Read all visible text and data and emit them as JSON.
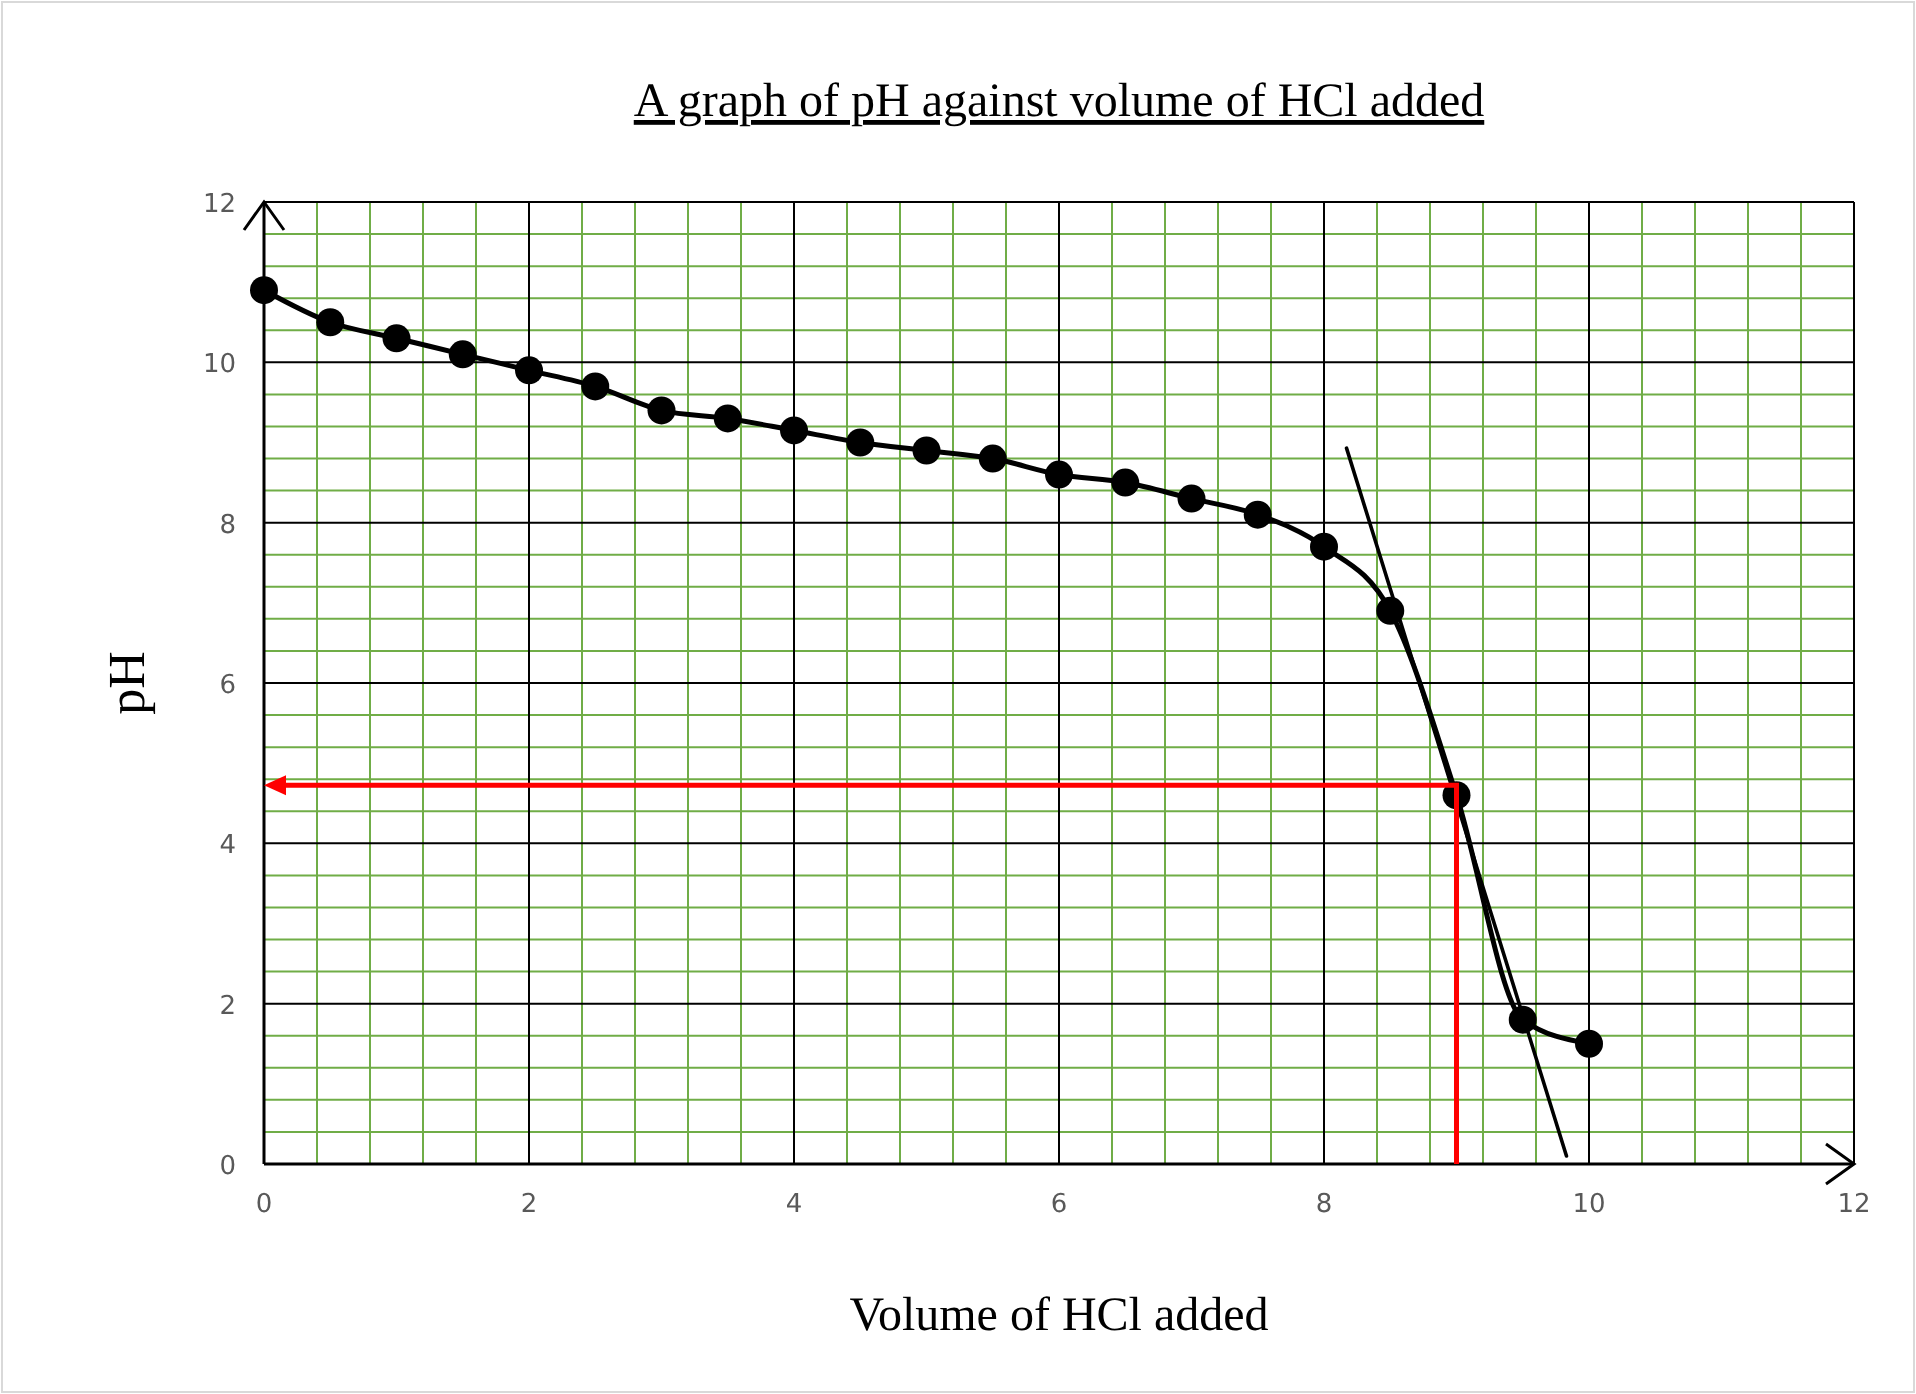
{
  "chart_data": {
    "type": "line",
    "title": "A graph of pH against volume of HCl added",
    "xlabel": "Volume of HCl added",
    "ylabel": "pH",
    "xlim": [
      0,
      12
    ],
    "ylim": [
      0,
      12
    ],
    "xticks": [
      0,
      {
        "value": 0.4,
        "label": null
      },
      {
        "value": 0.8,
        "label": null
      },
      {
        "value": 1.2,
        "label": null
      },
      {
        "value": 1.6,
        "label": null
      },
      2,
      {
        "value": 2.4,
        "label": null
      },
      {
        "value": 2.8,
        "label": null
      },
      {
        "value": 3.2,
        "label": null
      },
      {
        "value": 3.6,
        "label": null
      },
      4,
      {
        "value": 4.4,
        "label": null
      },
      {
        "value": 4.8,
        "label": null
      },
      {
        "value": 5.2,
        "label": null
      },
      {
        "value": 5.6,
        "label": null
      },
      6,
      {
        "value": 6.4,
        "label": null
      },
      {
        "value": 6.8,
        "label": null
      },
      {
        "value": 7.2,
        "label": null
      },
      {
        "value": 7.6,
        "label": null
      },
      8,
      {
        "value": 8.4,
        "label": null
      },
      {
        "value": 8.8,
        "label": null
      },
      {
        "value": 9.2,
        "label": null
      },
      {
        "value": 9.6,
        "label": null
      },
      10,
      {
        "value": 10.4,
        "label": null
      },
      {
        "value": 10.8,
        "label": null
      },
      {
        "value": 11.2,
        "label": null
      },
      {
        "value": 11.6,
        "label": null
      },
      12
    ],
    "yticks": [
      0,
      {
        "value": 0.4,
        "label": null
      },
      {
        "value": 0.8,
        "label": null
      },
      {
        "value": 1.2,
        "label": null
      },
      {
        "value": 1.6,
        "label": null
      },
      2,
      {
        "value": 2.4,
        "label": null
      },
      {
        "value": 2.8,
        "label": null
      },
      {
        "value": 3.2,
        "label": null
      },
      {
        "value": 3.6,
        "label": null
      },
      4,
      {
        "value": 4.4,
        "label": null
      },
      {
        "value": 4.8,
        "label": null
      },
      {
        "value": 5.2,
        "label": null
      },
      {
        "value": 5.6,
        "label": null
      },
      6,
      {
        "value": 6.4,
        "label": null
      },
      {
        "value": 6.8,
        "label": null
      },
      {
        "value": 7.2,
        "label": null
      },
      {
        "value": 7.6,
        "label": null
      },
      8,
      {
        "value": 8.4,
        "label": null
      },
      {
        "value": 8.8,
        "label": null
      },
      {
        "value": 9.2,
        "label": null
      },
      {
        "value": 9.6,
        "label": null
      },
      10,
      {
        "value": 10.4,
        "label": null
      },
      {
        "value": 10.8,
        "label": null
      },
      {
        "value": 11.2,
        "label": null
      },
      {
        "value": 11.6,
        "label": null
      },
      12
    ],
    "grid": true,
    "marker": "circle",
    "line_style": "solid",
    "series": [
      {
        "color": "#000000",
        "x": [
          0,
          0.5,
          1,
          1.5,
          2,
          2.5,
          3,
          3.5,
          4,
          4.5,
          5,
          5.5,
          6,
          6.5,
          7,
          7.5,
          8,
          8.5,
          9,
          9.5,
          10
        ],
        "values": [
          10.9,
          10.5,
          10.3,
          10.1,
          9.9,
          9.7,
          9.4,
          9.3,
          9.15,
          9.0,
          8.9,
          8.8,
          8.6,
          8.5,
          8.3,
          8.1,
          7.7,
          6.9,
          4.6,
          1.8,
          1.5
        ]
      },
      {
        "color": "#000000",
        "marker": "none",
        "x": [
          8.17,
          9.83
        ],
        "values": [
          8.93,
          0.1
        ]
      }
    ]
  }
}
